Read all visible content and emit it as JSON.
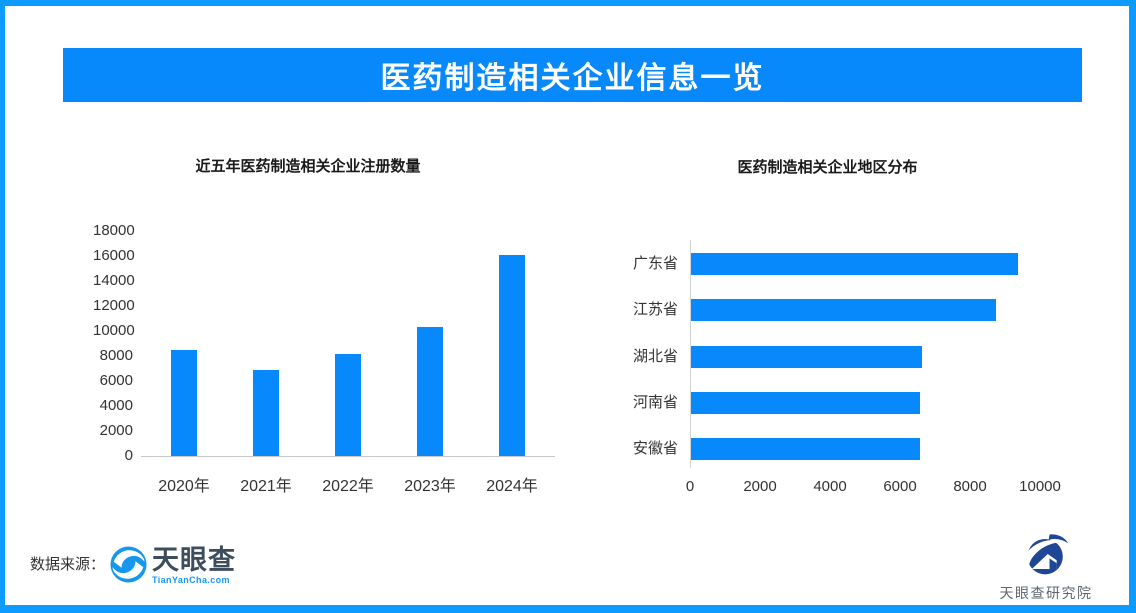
{
  "header": {
    "title": "医药制造相关企业信息一览"
  },
  "chart_data": [
    {
      "type": "bar",
      "orientation": "vertical",
      "title": "近五年医药制造相关企业注册数量",
      "categories": [
        "2020年",
        "2021年",
        "2022年",
        "2023年",
        "2024年"
      ],
      "values": [
        8450,
        6850,
        8150,
        10300,
        16100
      ],
      "xlabel": "",
      "ylabel": "",
      "ylim": [
        0,
        18000
      ],
      "yticks": [
        0,
        2000,
        4000,
        6000,
        8000,
        10000,
        12000,
        14000,
        16000,
        18000
      ],
      "grid": false,
      "legend": false,
      "bar_color": "#0788fb"
    },
    {
      "type": "bar",
      "orientation": "horizontal",
      "title": "医药制造相关企业地区分布",
      "categories": [
        "广东省",
        "江苏省",
        "湖北省",
        "河南省",
        "安徽省"
      ],
      "values": [
        9350,
        8700,
        6600,
        6550,
        6550
      ],
      "xlabel": "",
      "ylabel": "",
      "xlim": [
        0,
        10000
      ],
      "xticks": [
        0,
        2000,
        4000,
        6000,
        8000,
        10000
      ],
      "grid": false,
      "legend": false,
      "bar_color": "#0788fb"
    }
  ],
  "footer": {
    "source_label": "数据来源：",
    "tianyancha": {
      "name": "天眼查",
      "domain": "TianYanCha.com"
    },
    "institute": {
      "name": "天眼查研究院"
    }
  },
  "icons": {
    "tianyancha_eye": "tianyancha-eye-icon",
    "institute_mark": "institute-swoosh-house-icon"
  },
  "colors": {
    "accent": "#0788fb",
    "frame_border": "#0d9bff",
    "institute_navy": "#1f4796",
    "banner_text": "#ffffff"
  }
}
